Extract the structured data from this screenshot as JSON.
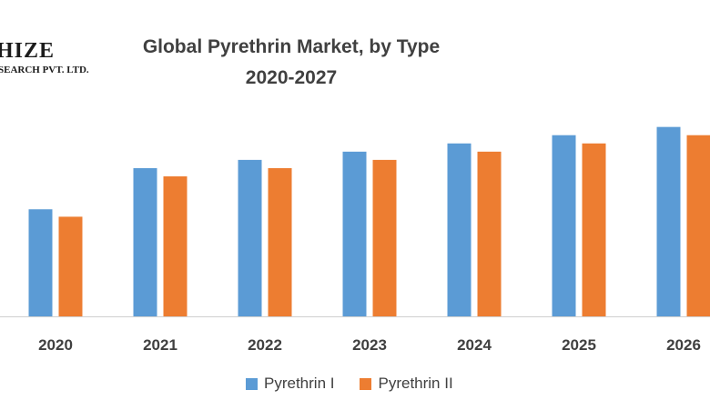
{
  "logo": {
    "main": "HIZE",
    "sub": "SEARCH PVT. LTD."
  },
  "chart_data": {
    "type": "bar",
    "title": "Global Pyrethrin Market, by Type",
    "subtitle": "2020-2027",
    "categories": [
      "2020",
      "2021",
      "2022",
      "2023",
      "2024",
      "2025",
      "2026"
    ],
    "series": [
      {
        "name": "Pyrethrin I",
        "color": "#5b9bd5",
        "values": [
          1.3,
          1.8,
          1.9,
          2.0,
          2.1,
          2.2,
          2.3
        ]
      },
      {
        "name": "Pyrethrin II",
        "color": "#ed7d31",
        "values": [
          1.21,
          1.7,
          1.8,
          1.9,
          2.0,
          2.1,
          2.2
        ]
      }
    ],
    "ylim": [
      0,
      3.4
    ],
    "grid": false,
    "legend": "bottom"
  }
}
